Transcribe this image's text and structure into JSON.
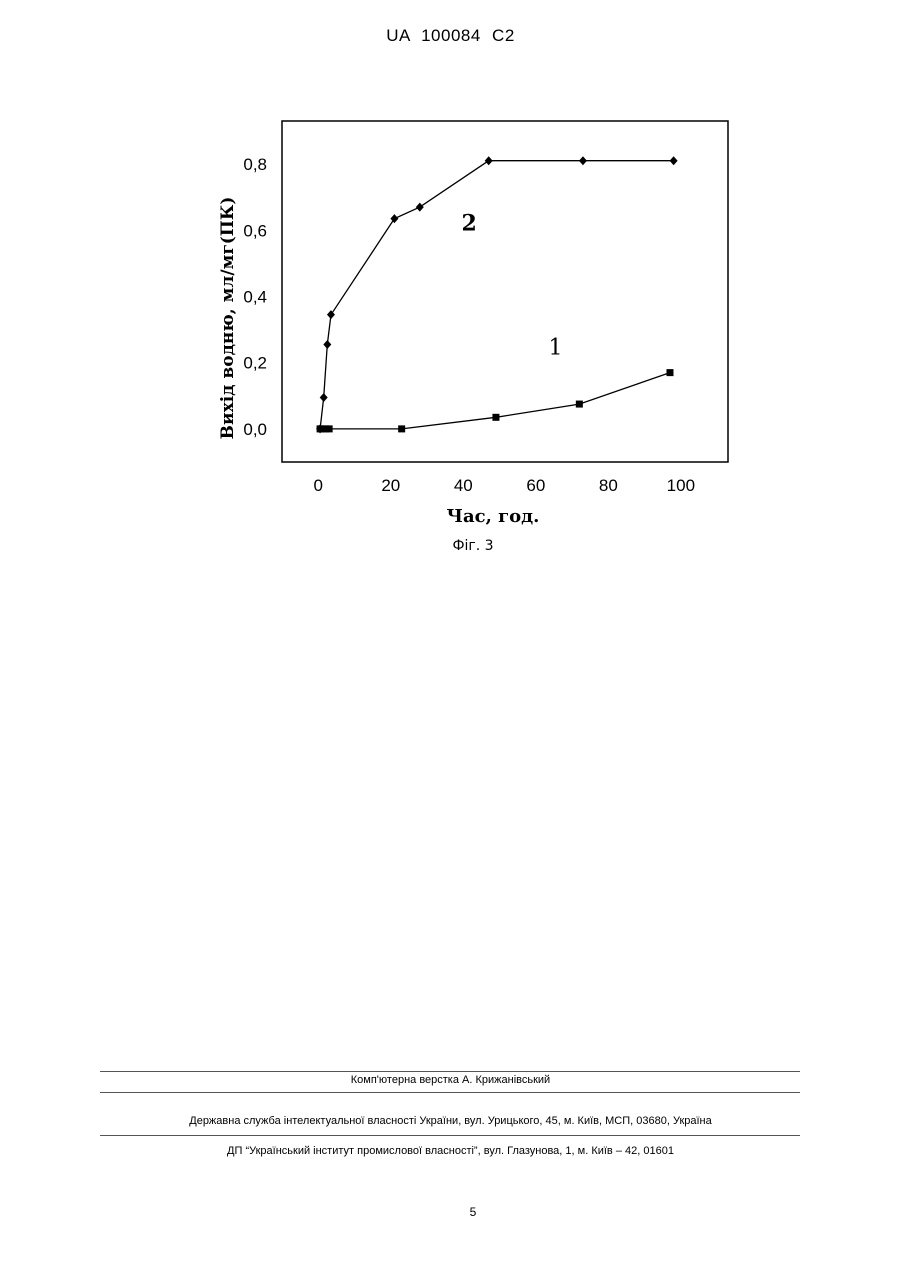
{
  "header": {
    "doc_number": "UA 100084 C2"
  },
  "figure": {
    "caption": "Фіг. 3"
  },
  "chart_data": {
    "type": "line",
    "xlabel": "Час, год.",
    "ylabel": "Вихід водню, мл/мг(ПК)",
    "xlim": [
      -10,
      113
    ],
    "ylim": [
      -0.1,
      0.93
    ],
    "x_ticks": [
      "0",
      "20",
      "40",
      "60",
      "80",
      "100"
    ],
    "x_tick_values": [
      0,
      20,
      40,
      60,
      80,
      100
    ],
    "y_ticks": [
      "0,0",
      "0,2",
      "0,4",
      "0,6",
      "0,8"
    ],
    "y_tick_values": [
      0.0,
      0.2,
      0.4,
      0.6,
      0.8
    ],
    "grid": false,
    "series": [
      {
        "name": "1",
        "marker": "square",
        "x": [
          0.5,
          1,
          2,
          3,
          23,
          49,
          72,
          97
        ],
        "y": [
          0.0,
          0.0,
          0.0,
          0.0,
          0.0,
          0.035,
          0.075,
          0.17
        ]
      },
      {
        "name": "2",
        "marker": "diamond",
        "x": [
          0.5,
          1.5,
          2.5,
          3.5,
          21,
          28,
          47,
          73,
          98
        ],
        "y": [
          0.0,
          0.095,
          0.255,
          0.345,
          0.635,
          0.67,
          0.81,
          0.81,
          0.81
        ]
      }
    ]
  },
  "footer": {
    "layout_credit": "Комп'ютерна верстка А. Крижанівський",
    "agency": "Державна служба інтелектуальної власності України, вул. Урицького, 45, м. Київ, МСП, 03680, Україна",
    "institute": "ДП “Український інститут промислової власності”, вул. Глазунова, 1, м. Київ – 42, 01601",
    "page_number": "5"
  }
}
